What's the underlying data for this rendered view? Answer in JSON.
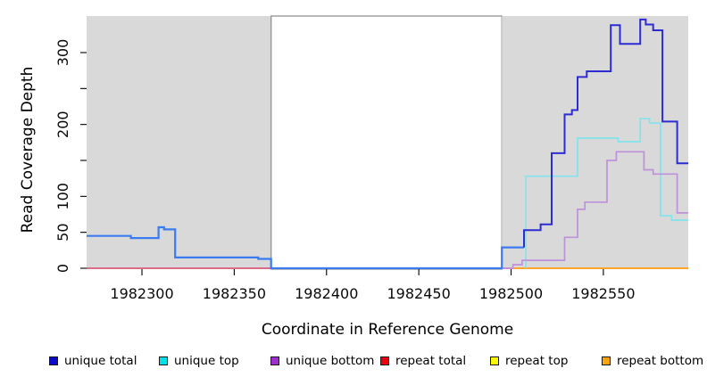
{
  "chart_data": {
    "type": "line",
    "title": "",
    "xlabel": "Coordinate in Reference Genome",
    "ylabel": "Read Coverage Depth",
    "xlim": [
      1982270,
      1982596
    ],
    "ylim": [
      0,
      348
    ],
    "x_ticks": [
      1982300,
      1982350,
      1982400,
      1982450,
      1982500,
      1982550
    ],
    "x_tick_labels": [
      "1982300",
      "1982350",
      "1982400",
      "1982450",
      "1982500",
      "1982550"
    ],
    "y_ticks": [
      0,
      50,
      100,
      150,
      200,
      250,
      300
    ],
    "y_tick_labels": [
      "0",
      "50",
      "100",
      "",
      "200",
      "",
      "300"
    ],
    "grid": false,
    "legend_position": "bottom",
    "background_regions": [
      {
        "x_from": 1982270,
        "x_to": 1982370,
        "fill": "#d9d9d9",
        "border": ""
      },
      {
        "x_from": 1982370,
        "x_to": 1982495,
        "fill": "#ffffff",
        "border": "#8a8a8a"
      },
      {
        "x_from": 1982495,
        "x_to": 1982596,
        "fill": "#d9d9d9",
        "border": ""
      }
    ],
    "draw_order": [
      "repeat top",
      "repeat total",
      "repeat bottom",
      "unique top",
      "unique bottom",
      "unique total"
    ],
    "series": [
      {
        "name": "unique total",
        "legend_color": "#0b0bd0",
        "parts": [
          {
            "color": "#3b7bf0",
            "width": 2.2,
            "points": [
              [
                1982270,
                45
              ],
              [
                1982294,
                45
              ],
              [
                1982294,
                42
              ],
              [
                1982309,
                42
              ],
              [
                1982309,
                57
              ],
              [
                1982312,
                57
              ],
              [
                1982312,
                54
              ],
              [
                1982318,
                54
              ],
              [
                1982318,
                15
              ],
              [
                1982363,
                15
              ],
              [
                1982363,
                13
              ],
              [
                1982370,
                13
              ],
              [
                1982370,
                0
              ],
              [
                1982495,
                0
              ],
              [
                1982495,
                29
              ],
              [
                1982507,
                29
              ]
            ]
          },
          {
            "color": "#2c2cd2",
            "width": 2.0,
            "points": [
              [
                1982507,
                29
              ],
              [
                1982507,
                53
              ],
              [
                1982516,
                53
              ],
              [
                1982516,
                61
              ],
              [
                1982522,
                61
              ],
              [
                1982522,
                160
              ],
              [
                1982529,
                160
              ],
              [
                1982529,
                214
              ],
              [
                1982533,
                214
              ],
              [
                1982533,
                220
              ],
              [
                1982536,
                220
              ],
              [
                1982536,
                266
              ],
              [
                1982541,
                266
              ],
              [
                1982541,
                274
              ],
              [
                1982554,
                274
              ],
              [
                1982554,
                338
              ],
              [
                1982559,
                338
              ],
              [
                1982559,
                312
              ],
              [
                1982570,
                312
              ],
              [
                1982570,
                346
              ],
              [
                1982573,
                346
              ],
              [
                1982573,
                339
              ],
              [
                1982577,
                339
              ],
              [
                1982577,
                331
              ],
              [
                1982582,
                331
              ],
              [
                1982582,
                204
              ],
              [
                1982590,
                204
              ],
              [
                1982590,
                146
              ],
              [
                1982596,
                146
              ]
            ]
          }
        ]
      },
      {
        "name": "unique top",
        "legend_color": "#00e0e8",
        "parts": [
          {
            "color": "#82e4ec",
            "width": 1.7,
            "points": [
              [
                1982508,
                0
              ],
              [
                1982508,
                128
              ],
              [
                1982536,
                128
              ],
              [
                1982536,
                181
              ],
              [
                1982558,
                181
              ],
              [
                1982558,
                176
              ],
              [
                1982570,
                176
              ],
              [
                1982570,
                208
              ],
              [
                1982575,
                208
              ],
              [
                1982575,
                202
              ],
              [
                1982581,
                202
              ],
              [
                1982581,
                73
              ],
              [
                1982587,
                73
              ],
              [
                1982587,
                67
              ],
              [
                1982596,
                67
              ]
            ]
          }
        ]
      },
      {
        "name": "unique bottom",
        "legend_color": "#a02fd0",
        "parts": [
          {
            "color": "#bd92da",
            "width": 1.7,
            "points": [
              [
                1982495,
                0
              ],
              [
                1982501,
                0
              ],
              [
                1982501,
                5
              ],
              [
                1982506,
                5
              ],
              [
                1982506,
                11
              ],
              [
                1982529,
                11
              ],
              [
                1982529,
                43
              ],
              [
                1982536,
                43
              ],
              [
                1982536,
                82
              ],
              [
                1982540,
                82
              ],
              [
                1982540,
                92
              ],
              [
                1982552,
                92
              ],
              [
                1982552,
                150
              ],
              [
                1982557,
                150
              ],
              [
                1982557,
                162
              ],
              [
                1982572,
                162
              ],
              [
                1982572,
                137
              ],
              [
                1982577,
                137
              ],
              [
                1982577,
                131
              ],
              [
                1982590,
                131
              ],
              [
                1982590,
                77
              ],
              [
                1982596,
                77
              ]
            ]
          }
        ]
      },
      {
        "name": "repeat total",
        "legend_color": "#ea0010",
        "parts": [
          {
            "color": "#d9486c",
            "width": 1.6,
            "points": [
              [
                1982270,
                0
              ],
              [
                1982501,
                0
              ]
            ]
          }
        ]
      },
      {
        "name": "repeat top",
        "legend_color": "#fdfd00",
        "parts": [
          {
            "color": "#ffe800",
            "width": 1.6,
            "points": [
              [
                1982501,
                0
              ],
              [
                1982596,
                0
              ]
            ]
          }
        ]
      },
      {
        "name": "repeat bottom",
        "legend_color": "#ffa40c",
        "parts": [
          {
            "color": "#ff9d21",
            "width": 1.8,
            "points": [
              [
                1982501,
                0
              ],
              [
                1982596,
                0
              ]
            ]
          }
        ]
      }
    ]
  }
}
